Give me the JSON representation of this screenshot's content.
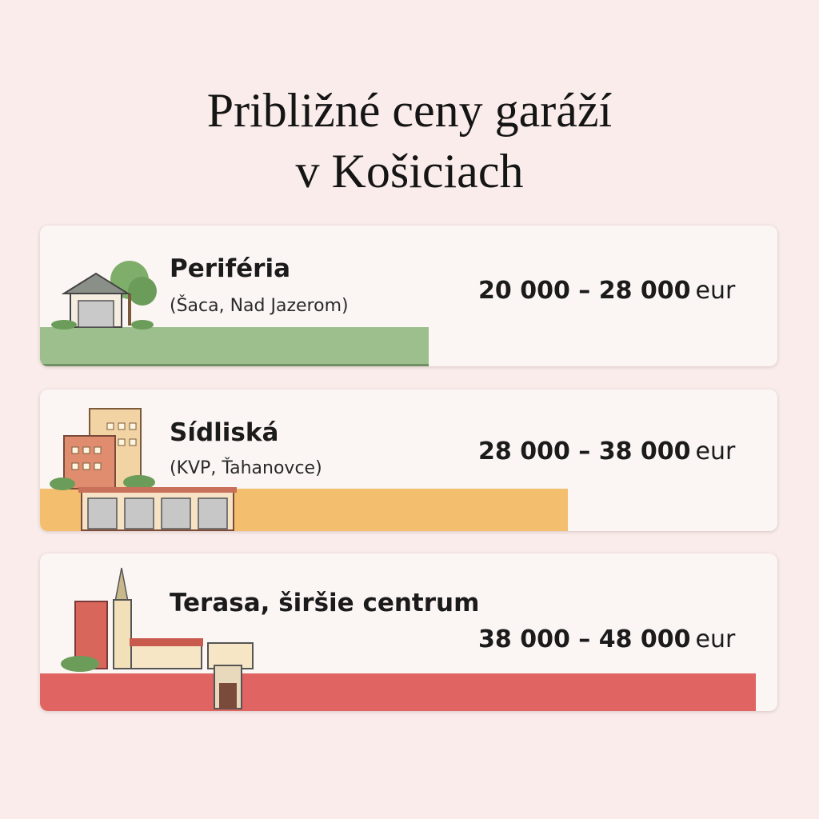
{
  "title": {
    "lines": [
      "Približné ceny garáží",
      "v Košiciach"
    ]
  },
  "cards": [
    {
      "name": "Periféria",
      "note": "(Šaca, Nad Jazerom)",
      "price": "20 000 – 28 000",
      "unit": "eur"
    },
    {
      "name": "Sídliská",
      "note": "(KVP, Ťahanovce)",
      "price": "28 000 – 38 000",
      "unit": "eur"
    },
    {
      "name": "Terasa, širšie centrum",
      "price": "38 000 – 48 000",
      "unit": "eur"
    }
  ]
}
